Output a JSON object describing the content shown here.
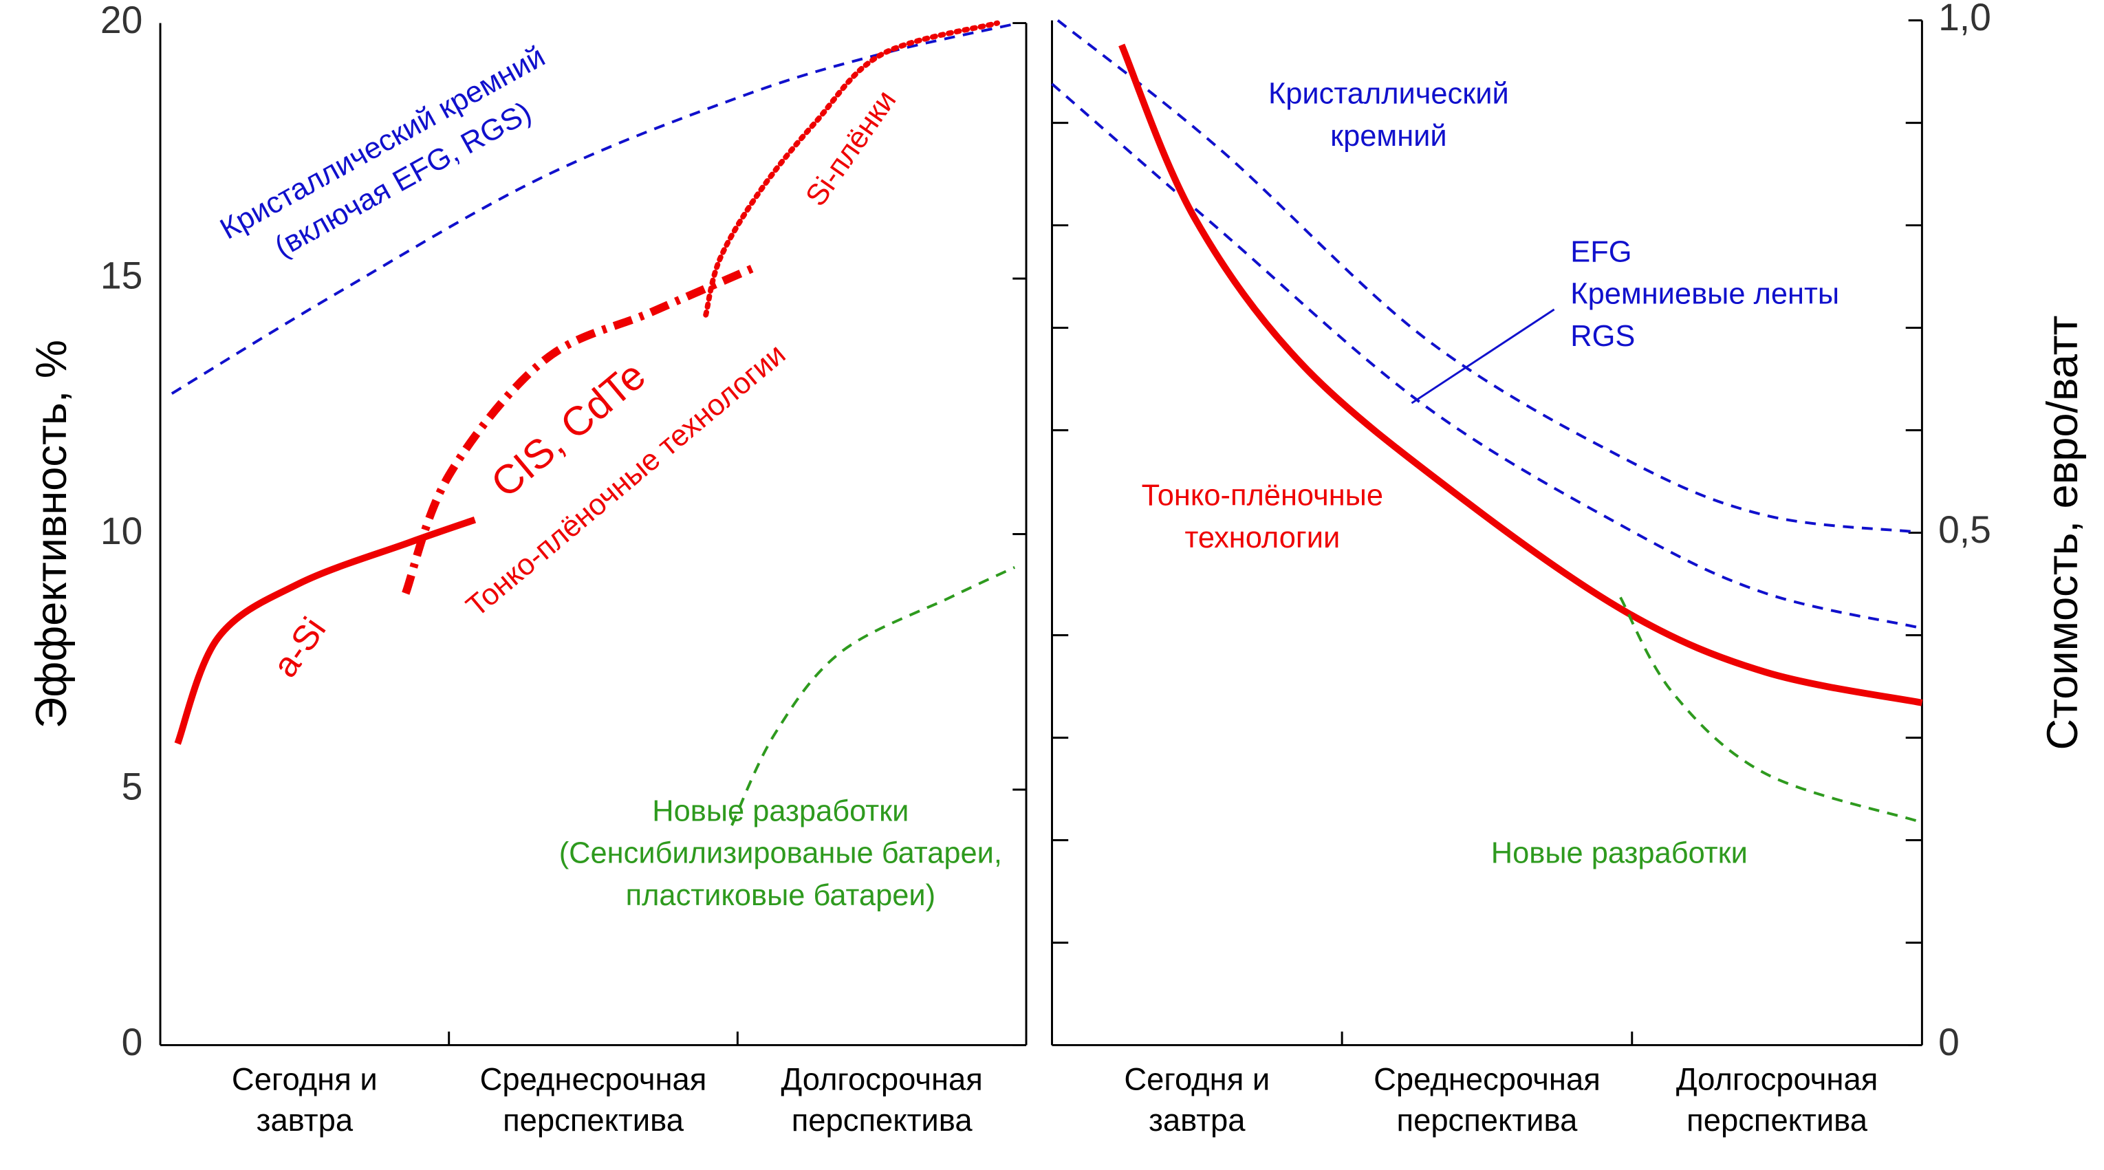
{
  "chart_data": [
    {
      "type": "line",
      "ylabel": "Эффективность, %",
      "ylim": [
        0,
        20
      ],
      "yticks": [
        0,
        5,
        10,
        15,
        20
      ],
      "xlim": [
        0,
        3
      ],
      "categories": [
        [
          "Сегодня и",
          "завтра"
        ],
        [
          "Среднесрочная",
          "перспектива"
        ],
        [
          "Долгосрочная",
          "перспектива"
        ]
      ],
      "series": [
        {
          "color": "#1010cc",
          "style": "dashed",
          "x": [
            0.04,
            0.62,
            1.33,
            2.03,
            2.5,
            2.95
          ],
          "values": [
            12.75,
            14.74,
            17.0,
            18.6,
            19.4,
            19.97
          ]
        },
        {
          "color": "#ee0000",
          "style": "solid",
          "x": [
            0.06,
            0.2,
            0.48,
            0.86,
            1.09
          ],
          "values": [
            5.9,
            7.97,
            9.03,
            9.83,
            10.28
          ]
        },
        {
          "color": "#ee0000",
          "style": "dashdot",
          "x": [
            0.85,
            1.0,
            1.33,
            1.7,
            2.06
          ],
          "values": [
            8.84,
            11.15,
            13.4,
            14.34,
            15.22
          ]
        },
        {
          "color": "#ee0000",
          "style": "dotted",
          "x": [
            1.89,
            1.94,
            2.08,
            2.27,
            2.5,
            2.9
          ],
          "values": [
            14.29,
            15.4,
            16.73,
            18.06,
            19.39,
            20
          ]
        },
        {
          "color": "#2e9a1e",
          "style": "dashed",
          "x": [
            1.98,
            2.13,
            2.36,
            2.74,
            2.96
          ],
          "values": [
            4.3,
            6.1,
            7.7,
            8.77,
            9.35
          ]
        }
      ],
      "annotations": [
        {
          "lines": [
            "Кристаллический кремний",
            "(включая EFG, RGS)"
          ],
          "color": "#1010cc"
        },
        {
          "lines": [
            "CIS, CdTe"
          ],
          "color": "#ee0000"
        },
        {
          "lines": [
            "Тонко-плёночные технологии"
          ],
          "color": "#ee0000"
        },
        {
          "lines": [
            "a-Si"
          ],
          "color": "#ee0000"
        },
        {
          "lines": [
            "Si-плёнки"
          ],
          "color": "#ee0000"
        },
        {
          "lines": [
            "Новые разработки",
            "(Сенсибилизированые батареи,",
            "пластиковые батареи)"
          ],
          "color": "#2e9a1e"
        }
      ]
    },
    {
      "type": "line",
      "ylabel": "Стоимость, евро/ватт",
      "ylim": [
        0,
        1
      ],
      "yticks": [
        0,
        {
          "value": 0.5,
          "label": "0,5"
        },
        {
          "value": 1,
          "label": "1,0"
        }
      ],
      "minor_yticks": [
        0.1,
        0.2,
        0.3,
        0.4,
        0.6,
        0.7,
        0.8,
        0.9
      ],
      "xlim": [
        0,
        3
      ],
      "categories": [
        [
          "Сегодня и",
          "завтра"
        ],
        [
          "Среднесрочная",
          "перспектива"
        ],
        [
          "Долгосрочная",
          "перспектива"
        ]
      ],
      "series": [
        {
          "color": "#1010cc",
          "style": "dashed",
          "x": [
            0.02,
            0.58,
            1.29,
            1.99,
            2.46,
            2.97
          ],
          "values": [
            1.0,
            0.874,
            0.689,
            0.57,
            0.517,
            0.501
          ]
        },
        {
          "color": "#1010cc",
          "style": "dashed",
          "x": [
            0,
            0.58,
            1.29,
            1.99,
            2.46,
            2.98
          ],
          "values": [
            0.938,
            0.795,
            0.623,
            0.503,
            0.441,
            0.408
          ]
        },
        {
          "color": "#ee0000",
          "style": "solid",
          "x": [
            0.24,
            0.49,
            0.87,
            1.43,
            1.99,
            2.46,
            3.0
          ],
          "values": [
            0.976,
            0.808,
            0.662,
            0.53,
            0.421,
            0.364,
            0.334
          ]
        },
        {
          "color": "#2e9a1e",
          "style": "dashed",
          "x": [
            1.96,
            2.14,
            2.46,
            2.98
          ],
          "values": [
            0.437,
            0.344,
            0.265,
            0.219
          ]
        }
      ],
      "annotations": [
        {
          "lines": [
            "Кристаллический",
            "кремний"
          ],
          "color": "#1010cc"
        },
        {
          "lines": [
            "EFG",
            "Кремниевые ленты",
            "RGS"
          ],
          "color": "#1010cc"
        },
        {
          "lines": [
            "Тонко-плёночные",
            "технологии"
          ],
          "color": "#ee0000"
        },
        {
          "lines": [
            "Новые разработки"
          ],
          "color": "#2e9a1e"
        }
      ]
    }
  ]
}
